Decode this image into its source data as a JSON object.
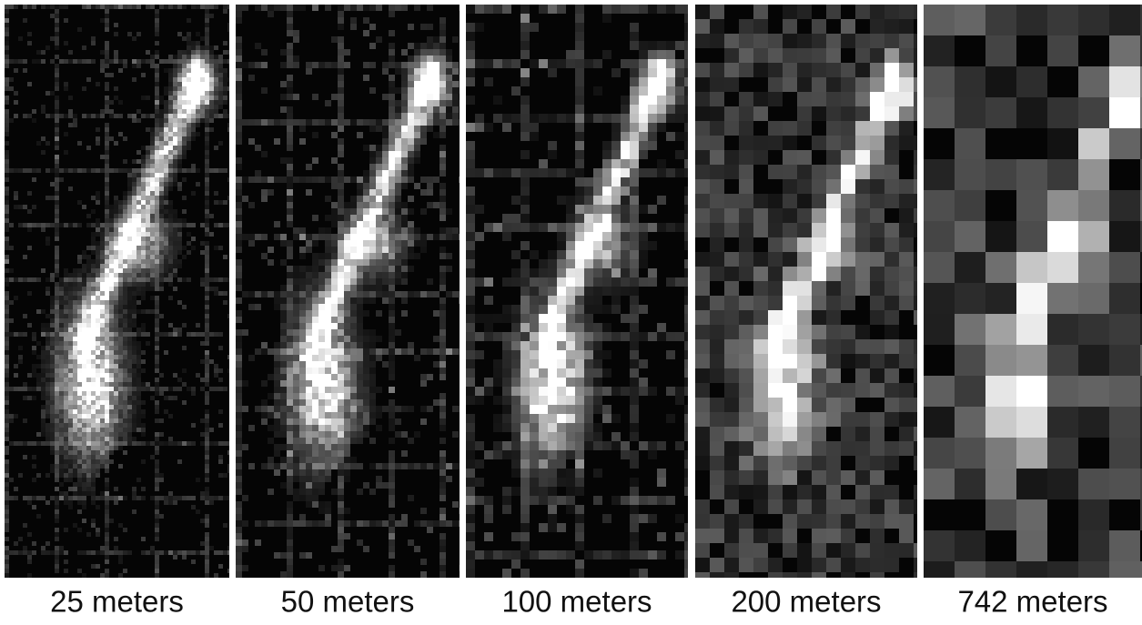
{
  "panels": [
    {
      "label": "25 meters"
    },
    {
      "label": "50 meters"
    },
    {
      "label": "100 meters"
    },
    {
      "label": "200 meters"
    },
    {
      "label": "742 meters"
    }
  ]
}
